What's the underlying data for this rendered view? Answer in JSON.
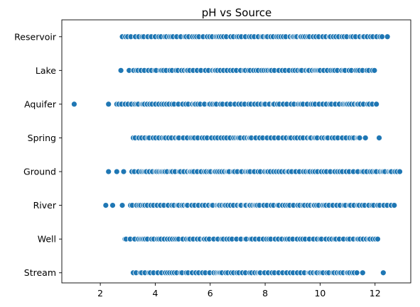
{
  "chart_data": {
    "type": "scatter",
    "title": "pH vs Source",
    "xlabel": "",
    "ylabel": "",
    "xlim": [
      0.6,
      13.3
    ],
    "xticks": [
      2,
      4,
      6,
      8,
      10,
      12
    ],
    "categories": [
      "Reservoir",
      "Lake",
      "Aquifer",
      "Spring",
      "Ground",
      "River",
      "Well",
      "Stream"
    ],
    "grid": false,
    "marker_color": "#1f77b4",
    "series": [
      {
        "category": "Reservoir",
        "min": 2.8,
        "max": 12.7,
        "outliers": [
          12.45
        ]
      },
      {
        "category": "Lake",
        "min": 2.4,
        "max": 12.1,
        "outliers": [
          2.75
        ]
      },
      {
        "category": "Aquifer",
        "min": 1.05,
        "max": 12.1,
        "outliers": [
          1.05,
          2.3,
          11.9,
          12.05
        ]
      },
      {
        "category": "Spring",
        "min": 3.2,
        "max": 12.15,
        "outliers": [
          11.65,
          12.15
        ]
      },
      {
        "category": "Ground",
        "min": 2.3,
        "max": 12.9,
        "outliers": [
          2.3,
          2.6,
          2.85,
          12.9
        ]
      },
      {
        "category": "River",
        "min": 2.2,
        "max": 12.7,
        "outliers": [
          2.2,
          2.45,
          2.8,
          12.7
        ]
      },
      {
        "category": "Well",
        "min": 2.9,
        "max": 12.1,
        "outliers": []
      },
      {
        "category": "Stream",
        "min": 3.2,
        "max": 12.3,
        "outliers": [
          11.55,
          12.3
        ]
      }
    ]
  }
}
